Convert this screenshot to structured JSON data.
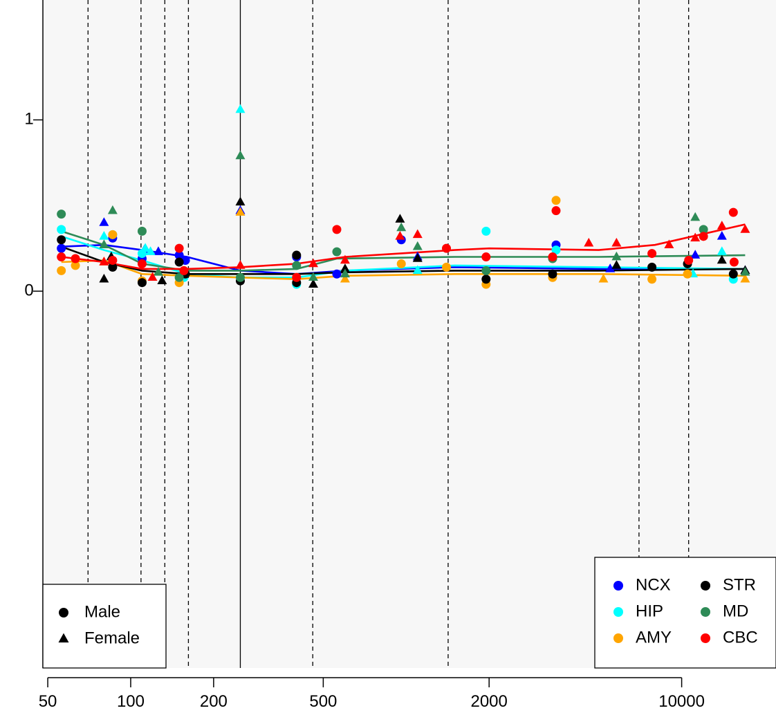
{
  "chart_data": {
    "type": "scatter",
    "xscale": "log",
    "xlim": [
      48,
      22000
    ],
    "ylim": [
      -2.2,
      1.7
    ],
    "x_ticks": [
      50,
      100,
      200,
      500,
      2000,
      10000
    ],
    "x_tick_labels": [
      "50",
      "100",
      "200",
      "500",
      "2000",
      "10000"
    ],
    "y_ticks": [
      0,
      1
    ],
    "y_tick_labels": [
      "0",
      "1"
    ],
    "background_color": "#f7f7f7",
    "vlines_dashed": [
      70,
      109,
      133,
      162,
      458,
      1420,
      7000,
      10600
    ],
    "vline_solid": 250,
    "shape_legend": {
      "position": "bottom-left",
      "items": [
        {
          "label": "Male",
          "shape": "circle"
        },
        {
          "label": "Female",
          "shape": "triangle"
        }
      ]
    },
    "region_legend": {
      "position": "bottom-right",
      "items": [
        {
          "label": "NCX",
          "color": "#0000ff"
        },
        {
          "label": "STR",
          "color": "#000000"
        },
        {
          "label": "HIP",
          "color": "#00ffff"
        },
        {
          "label": "MD",
          "color": "#2e8b57"
        },
        {
          "label": "AMY",
          "color": "#ffa500"
        },
        {
          "label": "CBC",
          "color": "#ff0000"
        }
      ]
    },
    "series": [
      {
        "name": "NCX",
        "color": "#0000ff",
        "trend": [
          [
            56,
            0.26
          ],
          [
            80,
            0.27
          ],
          [
            110,
            0.24
          ],
          [
            160,
            0.2
          ],
          [
            250,
            0.12
          ],
          [
            400,
            0.1
          ],
          [
            600,
            0.12
          ],
          [
            1500,
            0.14
          ],
          [
            5000,
            0.13
          ],
          [
            17000,
            0.13
          ]
        ],
        "points": [
          [
            56,
            0.25,
            "m"
          ],
          [
            80,
            0.4,
            "f"
          ],
          [
            86,
            0.31,
            "m"
          ],
          [
            110,
            0.19,
            "m"
          ],
          [
            112,
            0.24,
            "f"
          ],
          [
            126,
            0.23,
            "f"
          ],
          [
            150,
            0.21,
            "m"
          ],
          [
            158,
            0.18,
            "m"
          ],
          [
            250,
            0.47,
            "f"
          ],
          [
            400,
            0.2,
            "m"
          ],
          [
            560,
            0.1,
            "m"
          ],
          [
            960,
            0.3,
            "m"
          ],
          [
            1100,
            0.2,
            "f"
          ],
          [
            3500,
            0.27,
            "m"
          ],
          [
            5500,
            0.13,
            "f"
          ],
          [
            11200,
            0.21,
            "f"
          ],
          [
            14000,
            0.32,
            "f"
          ],
          [
            17000,
            0.12,
            "f"
          ]
        ]
      },
      {
        "name": "HIP",
        "color": "#00ffff",
        "trend": [
          [
            56,
            0.32
          ],
          [
            80,
            0.24
          ],
          [
            110,
            0.18
          ],
          [
            160,
            0.1
          ],
          [
            250,
            0.08
          ],
          [
            400,
            0.08
          ],
          [
            600,
            0.12
          ],
          [
            1500,
            0.15
          ],
          [
            5000,
            0.14
          ],
          [
            17000,
            0.13
          ]
        ],
        "points": [
          [
            56,
            0.36,
            "m"
          ],
          [
            80,
            0.32,
            "f"
          ],
          [
            86,
            0.33,
            "m"
          ],
          [
            110,
            0.22,
            "m"
          ],
          [
            113,
            0.25,
            "f"
          ],
          [
            118,
            0.23,
            "f"
          ],
          [
            156,
            0.08,
            "m"
          ],
          [
            250,
            1.06,
            "f"
          ],
          [
            400,
            0.04,
            "m"
          ],
          [
            1100,
            0.12,
            "f"
          ],
          [
            1950,
            0.35,
            "m"
          ],
          [
            3500,
            0.24,
            "m"
          ],
          [
            11000,
            0.1,
            "f"
          ],
          [
            14000,
            0.23,
            "f"
          ],
          [
            15400,
            0.07,
            "m"
          ]
        ]
      },
      {
        "name": "AMY",
        "color": "#ffa500",
        "trend": [
          [
            56,
            0.17
          ],
          [
            80,
            0.18
          ],
          [
            110,
            0.1
          ],
          [
            160,
            0.09
          ],
          [
            250,
            0.08
          ],
          [
            400,
            0.07
          ],
          [
            600,
            0.09
          ],
          [
            1500,
            0.1
          ],
          [
            5000,
            0.1
          ],
          [
            17000,
            0.09
          ]
        ],
        "points": [
          [
            56,
            0.12,
            "m"
          ],
          [
            63,
            0.15,
            "m"
          ],
          [
            80,
            0.17,
            "f"
          ],
          [
            86,
            0.33,
            "m"
          ],
          [
            110,
            0.06,
            "m"
          ],
          [
            150,
            0.05,
            "m"
          ],
          [
            250,
            0.46,
            "f"
          ],
          [
            400,
            0.08,
            "m"
          ],
          [
            600,
            0.07,
            "f"
          ],
          [
            960,
            0.16,
            "m"
          ],
          [
            1400,
            0.14,
            "m"
          ],
          [
            1950,
            0.04,
            "m"
          ],
          [
            3400,
            0.08,
            "m"
          ],
          [
            3500,
            0.53,
            "m"
          ],
          [
            5200,
            0.07,
            "f"
          ],
          [
            7800,
            0.07,
            "m"
          ],
          [
            10500,
            0.1,
            "m"
          ],
          [
            17000,
            0.07,
            "f"
          ]
        ]
      },
      {
        "name": "STR",
        "color": "#000000",
        "trend": [
          [
            56,
            0.26
          ],
          [
            80,
            0.17
          ],
          [
            110,
            0.12
          ],
          [
            160,
            0.1
          ],
          [
            250,
            0.1
          ],
          [
            400,
            0.1
          ],
          [
            600,
            0.11
          ],
          [
            1500,
            0.12
          ],
          [
            5000,
            0.12
          ],
          [
            17000,
            0.13
          ]
        ],
        "points": [
          [
            56,
            0.3,
            "m"
          ],
          [
            80,
            0.07,
            "f"
          ],
          [
            85,
            0.2,
            "f"
          ],
          [
            86,
            0.14,
            "m"
          ],
          [
            110,
            0.05,
            "m"
          ],
          [
            130,
            0.06,
            "f"
          ],
          [
            150,
            0.17,
            "m"
          ],
          [
            158,
            0.1,
            "m"
          ],
          [
            250,
            0.52,
            "f"
          ],
          [
            250,
            0.06,
            "m"
          ],
          [
            400,
            0.05,
            "m"
          ],
          [
            400,
            0.21,
            "m"
          ],
          [
            460,
            0.04,
            "f"
          ],
          [
            600,
            0.13,
            "f"
          ],
          [
            950,
            0.42,
            "f"
          ],
          [
            1100,
            0.19,
            "f"
          ],
          [
            1950,
            0.07,
            "m"
          ],
          [
            3400,
            0.1,
            "m"
          ],
          [
            5800,
            0.15,
            "f"
          ],
          [
            7800,
            0.14,
            "m"
          ],
          [
            10500,
            0.16,
            "m"
          ],
          [
            14000,
            0.18,
            "f"
          ],
          [
            15400,
            0.1,
            "m"
          ],
          [
            17000,
            0.12,
            "f"
          ]
        ]
      },
      {
        "name": "MD",
        "color": "#2e8b57",
        "trend": [
          [
            56,
            0.35
          ],
          [
            80,
            0.27
          ],
          [
            110,
            0.16
          ],
          [
            160,
            0.12
          ],
          [
            250,
            0.12
          ],
          [
            400,
            0.13
          ],
          [
            560,
            0.19
          ],
          [
            1500,
            0.2
          ],
          [
            5000,
            0.2
          ],
          [
            17000,
            0.21
          ]
        ],
        "points": [
          [
            56,
            0.45,
            "m"
          ],
          [
            80,
            0.27,
            "f"
          ],
          [
            86,
            0.47,
            "f"
          ],
          [
            110,
            0.35,
            "m"
          ],
          [
            126,
            0.11,
            "f"
          ],
          [
            150,
            0.08,
            "m"
          ],
          [
            250,
            0.79,
            "f"
          ],
          [
            250,
            0.08,
            "m"
          ],
          [
            400,
            0.15,
            "m"
          ],
          [
            460,
            0.08,
            "f"
          ],
          [
            560,
            0.23,
            "m"
          ],
          [
            600,
            0.1,
            "f"
          ],
          [
            960,
            0.37,
            "f"
          ],
          [
            1100,
            0.26,
            "f"
          ],
          [
            1950,
            0.12,
            "m"
          ],
          [
            3400,
            0.19,
            "m"
          ],
          [
            5800,
            0.2,
            "f"
          ],
          [
            11200,
            0.43,
            "f"
          ],
          [
            12000,
            0.36,
            "m"
          ],
          [
            17000,
            0.11,
            "f"
          ]
        ]
      },
      {
        "name": "CBC",
        "color": "#ff0000",
        "trend": [
          [
            56,
            0.2
          ],
          [
            80,
            0.17
          ],
          [
            110,
            0.13
          ],
          [
            160,
            0.13
          ],
          [
            250,
            0.14
          ],
          [
            400,
            0.16
          ],
          [
            600,
            0.2
          ],
          [
            1500,
            0.24
          ],
          [
            2000,
            0.25
          ],
          [
            5000,
            0.24
          ],
          [
            8000,
            0.27
          ],
          [
            17000,
            0.39
          ]
        ],
        "points": [
          [
            56,
            0.2,
            "m"
          ],
          [
            63,
            0.19,
            "m"
          ],
          [
            80,
            0.17,
            "f"
          ],
          [
            86,
            0.18,
            "m"
          ],
          [
            110,
            0.16,
            "m"
          ],
          [
            120,
            0.08,
            "f"
          ],
          [
            150,
            0.25,
            "m"
          ],
          [
            156,
            0.12,
            "m"
          ],
          [
            250,
            0.15,
            "f"
          ],
          [
            400,
            0.08,
            "m"
          ],
          [
            460,
            0.16,
            "f"
          ],
          [
            560,
            0.36,
            "m"
          ],
          [
            600,
            0.18,
            "f"
          ],
          [
            950,
            0.32,
            "f"
          ],
          [
            1100,
            0.33,
            "f"
          ],
          [
            1400,
            0.25,
            "m"
          ],
          [
            1950,
            0.2,
            "m"
          ],
          [
            3400,
            0.2,
            "m"
          ],
          [
            3500,
            0.47,
            "m"
          ],
          [
            4600,
            0.28,
            "f"
          ],
          [
            5800,
            0.28,
            "f"
          ],
          [
            7800,
            0.22,
            "m"
          ],
          [
            9000,
            0.27,
            "f"
          ],
          [
            10600,
            0.18,
            "m"
          ],
          [
            11200,
            0.31,
            "f"
          ],
          [
            12000,
            0.32,
            "m"
          ],
          [
            14000,
            0.38,
            "f"
          ],
          [
            15400,
            0.46,
            "m"
          ],
          [
            15500,
            0.17,
            "m"
          ],
          [
            17000,
            0.36,
            "f"
          ]
        ]
      }
    ]
  }
}
